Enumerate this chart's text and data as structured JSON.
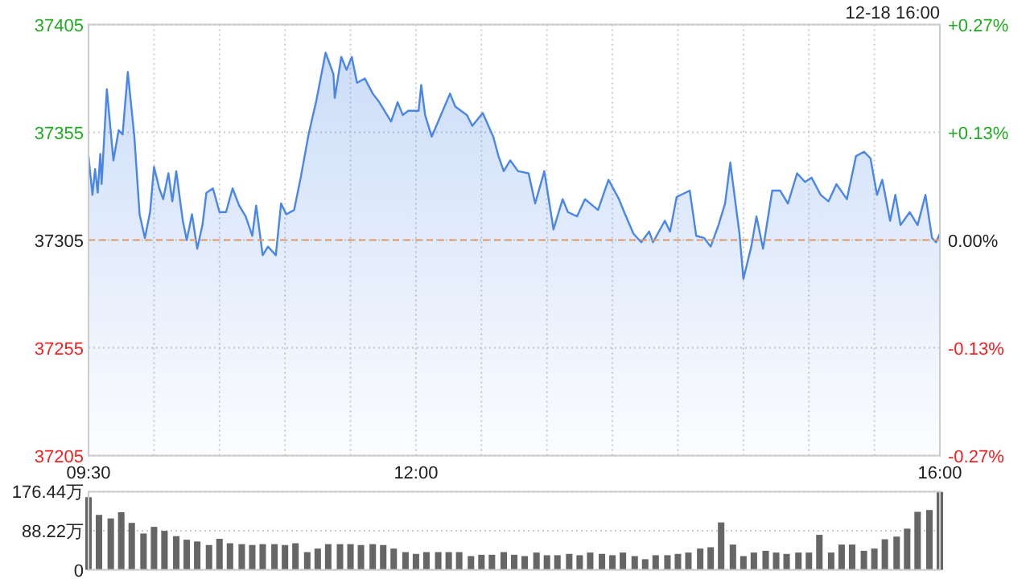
{
  "chart_data": [
    {
      "type": "area",
      "annotations": [
        "12-18 16:00"
      ],
      "xlim": [
        9.5,
        16
      ],
      "xticks": [
        {
          "value": 9.5,
          "label": "09:30"
        },
        {
          "value": 10,
          "label": null
        },
        {
          "value": 10.5,
          "label": null
        },
        {
          "value": 11,
          "label": null
        },
        {
          "value": 11.5,
          "label": null
        },
        {
          "value": 12,
          "label": "12:00"
        },
        {
          "value": 12.5,
          "label": null
        },
        {
          "value": 13,
          "label": null
        },
        {
          "value": 13.5,
          "label": null
        },
        {
          "value": 14,
          "label": null
        },
        {
          "value": 14.5,
          "label": null
        },
        {
          "value": 15,
          "label": null
        },
        {
          "value": 15.5,
          "label": null
        },
        {
          "value": 16,
          "label": "16:00"
        }
      ],
      "ylim": [
        37205,
        37405
      ],
      "yticks": [
        37205,
        37255,
        37305,
        37355,
        37405
      ],
      "y2lim": [
        -0.268,
        0.268
      ],
      "y2ticks": [
        {
          "value": -0.268,
          "label": "-0.27%"
        },
        {
          "value": -0.134,
          "label": "-0.13%"
        },
        {
          "value": 0,
          "label": "0.00%"
        },
        {
          "value": 0.134,
          "label": "+0.13%"
        },
        {
          "value": 0.268,
          "label": "+0.27%"
        }
      ],
      "grid": true,
      "ref_lines": [
        {
          "axis": "y",
          "value": 37305,
          "color": "#e59866",
          "line_style": "dashed"
        }
      ],
      "series": [
        {
          "color": "#4a86e8",
          "x": [
            9.5,
            9.53,
            9.55,
            9.57,
            9.59,
            9.6,
            9.64,
            9.69,
            9.73,
            9.76,
            9.8,
            9.85,
            9.89,
            9.93,
            9.97,
            10.0,
            10.04,
            10.07,
            10.11,
            10.14,
            10.17,
            10.2,
            10.22,
            10.25,
            10.29,
            10.33,
            10.37,
            10.4,
            10.45,
            10.5,
            10.55,
            10.6,
            10.65,
            10.7,
            10.75,
            10.78,
            10.83,
            10.87,
            10.93,
            10.97,
            11.01,
            11.07,
            11.12,
            11.18,
            11.24,
            11.31,
            11.37,
            11.38,
            11.43,
            11.47,
            11.51,
            11.55,
            11.61,
            11.67,
            11.72,
            11.81,
            11.86,
            11.9,
            11.94,
            12.02,
            12.04,
            12.07,
            12.12,
            12.19,
            12.26,
            12.3,
            12.39,
            12.43,
            12.51,
            12.59,
            12.63,
            12.67,
            12.72,
            12.78,
            12.86,
            12.91,
            12.98,
            13.05,
            13.12,
            13.16,
            13.23,
            13.29,
            13.39,
            13.47,
            13.55,
            13.59,
            13.66,
            13.72,
            13.78,
            13.81,
            13.9,
            13.94,
            13.99,
            14.09,
            14.14,
            14.2,
            14.25,
            14.31,
            14.36,
            14.4,
            14.44,
            14.47,
            14.5,
            14.56,
            14.6,
            14.65,
            14.72,
            14.78,
            14.84,
            14.91,
            14.97,
            15.02,
            15.09,
            15.15,
            15.21,
            15.29,
            15.36,
            15.42,
            15.47,
            15.52,
            15.56,
            15.62,
            15.66,
            15.7,
            15.77,
            15.83,
            15.89,
            15.94,
            15.97,
            16.0
          ],
          "values": [
            37344,
            37326,
            37338,
            37327,
            37345,
            37331,
            37375,
            37342,
            37356,
            37354,
            37383,
            37353,
            37317,
            37306,
            37318,
            37339,
            37329,
            37324,
            37336,
            37323,
            37337,
            37323,
            37314,
            37305,
            37317,
            37301,
            37312,
            37327,
            37329,
            37318,
            37318,
            37329,
            37321,
            37316,
            37307,
            37321,
            37298,
            37302,
            37298,
            37322,
            37317,
            37319,
            37334,
            37354,
            37370,
            37392,
            37382,
            37371,
            37390,
            37384,
            37390,
            37378,
            37380,
            37373,
            37369,
            37360,
            37369,
            37363,
            37365,
            37365,
            37377,
            37363,
            37353,
            37363,
            37373,
            37367,
            37363,
            37358,
            37364,
            37353,
            37344,
            37337,
            37342,
            37337,
            37336,
            37322,
            37337,
            37310,
            37324,
            37318,
            37316,
            37324,
            37319,
            37333,
            37324,
            37318,
            37308,
            37304,
            37309,
            37304,
            37314,
            37309,
            37325,
            37328,
            37307,
            37306,
            37302,
            37312,
            37322,
            37341,
            37322,
            37308,
            37287,
            37302,
            37316,
            37301,
            37328,
            37328,
            37322,
            37336,
            37332,
            37334,
            37326,
            37323,
            37331,
            37324,
            37344,
            37346,
            37343,
            37326,
            37333,
            37314,
            37326,
            37312,
            37318,
            37312,
            37326,
            37306,
            37304,
            37308
          ]
        }
      ]
    },
    {
      "type": "bar",
      "xlim": [
        9.5,
        16
      ],
      "ylim": [
        0,
        176.44
      ],
      "yticks": [
        0,
        {
          "value": 88.22,
          "label": "88.22万"
        },
        {
          "value": 176.44,
          "label": "176.44万"
        }
      ],
      "grid": "y",
      "tick_labels": "y",
      "series": [
        {
          "color": "#666666",
          "x": [
            9.5,
            9.58,
            9.67,
            9.75,
            9.83,
            9.92,
            10.0,
            10.08,
            10.17,
            10.25,
            10.33,
            10.42,
            10.5,
            10.58,
            10.67,
            10.75,
            10.83,
            10.92,
            11.0,
            11.08,
            11.17,
            11.25,
            11.33,
            11.42,
            11.5,
            11.58,
            11.67,
            11.75,
            11.83,
            11.92,
            12.0,
            12.08,
            12.17,
            12.25,
            12.33,
            12.42,
            12.5,
            12.58,
            12.67,
            12.75,
            12.83,
            12.92,
            13.0,
            13.08,
            13.17,
            13.25,
            13.33,
            13.42,
            13.5,
            13.58,
            13.67,
            13.75,
            13.83,
            13.92,
            14.0,
            14.08,
            14.17,
            14.25,
            14.33,
            14.42,
            14.5,
            14.58,
            14.67,
            14.75,
            14.83,
            14.92,
            15.0,
            15.08,
            15.17,
            15.25,
            15.33,
            15.42,
            15.5,
            15.58,
            15.67,
            15.75,
            15.83,
            15.92,
            16.0
          ],
          "values": [
            164,
            124,
            116,
            130,
            106,
            82,
            97,
            88,
            76,
            68,
            64,
            56,
            70,
            60,
            58,
            56,
            58,
            58,
            56,
            60,
            40,
            48,
            58,
            58,
            58,
            56,
            58,
            56,
            48,
            40,
            36,
            40,
            40,
            40,
            40,
            31,
            34,
            34,
            40,
            34,
            31,
            39,
            33,
            33,
            36,
            33,
            39,
            36,
            33,
            39,
            31,
            24,
            33,
            33,
            36,
            39,
            48,
            51,
            107,
            57,
            31,
            39,
            43,
            39,
            36,
            39,
            39,
            79,
            39,
            57,
            57,
            43,
            48,
            69,
            75,
            93,
            131,
            135,
            176
          ]
        }
      ]
    }
  ]
}
